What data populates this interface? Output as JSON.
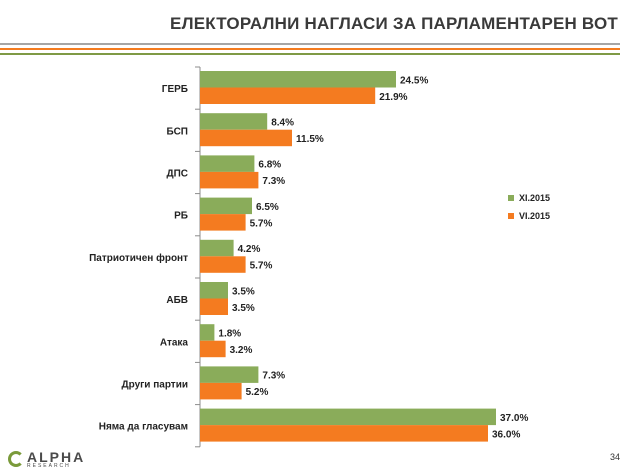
{
  "header": {
    "title": "ЕЛЕКТОРАЛНИ НАГЛАСИ ЗА ПАРЛАМЕНТАРЕН ВОТ",
    "rule_colors": [
      "#a6a6a6",
      "#f47b20",
      "#7f9a45"
    ]
  },
  "chart_data": {
    "type": "bar",
    "orientation": "horizontal",
    "categories": [
      "ГЕРБ",
      "БСП",
      "ДПС",
      "РБ",
      "Патриотичен фронт",
      "АБВ",
      "Атака",
      "Други партии",
      "Няма да гласувам"
    ],
    "series": [
      {
        "name": "XI.2015",
        "color": "#8aac5a",
        "values": [
          24.5,
          8.4,
          6.8,
          6.5,
          4.2,
          3.5,
          1.8,
          7.3,
          37.0
        ],
        "labels": [
          "24.5%",
          "8.4%",
          "6.8%",
          "6.5%",
          "4.2%",
          "3.5%",
          "1.8%",
          "7.3%",
          "37.0%"
        ]
      },
      {
        "name": "VI.2015",
        "color": "#f47b20",
        "values": [
          21.9,
          11.5,
          7.3,
          5.7,
          5.7,
          3.5,
          3.2,
          5.2,
          36.0
        ],
        "labels": [
          "21.9%",
          "11.5%",
          "7.3%",
          "5.7%",
          "5.7%",
          "3.5%",
          "3.2%",
          "5.2%",
          "36.0%"
        ]
      }
    ],
    "xlim": [
      0,
      40
    ],
    "grid": false,
    "legend_position": "right"
  },
  "legend": [
    {
      "label": "XI.2015",
      "color": "#8aac5a"
    },
    {
      "label": "VI.2015",
      "color": "#f47b20"
    }
  ],
  "footer": {
    "logo_main": "ALPHA",
    "logo_sub": "RESEARCH",
    "page_number": "34"
  }
}
